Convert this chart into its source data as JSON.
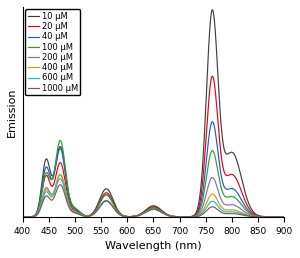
{
  "title": "",
  "xlabel": "Wavelength (nm)",
  "ylabel": "Emission",
  "xlim": [
    400,
    900
  ],
  "ylim": [
    0,
    1.05
  ],
  "series": [
    {
      "label": "10 μM",
      "color": "#404040",
      "peak1": 1.0,
      "peak2": 0.32,
      "p445": 0.28,
      "p472": 0.35,
      "p560": 0.14,
      "p650": 0.055
    },
    {
      "label": "20 μM",
      "color": "#e8000d",
      "peak1": 0.68,
      "peak2": 0.21,
      "p445": 0.2,
      "p472": 0.27,
      "p560": 0.12,
      "p650": 0.05
    },
    {
      "label": "40 μM",
      "color": "#1e5bc6",
      "peak1": 0.46,
      "peak2": 0.14,
      "p445": 0.24,
      "p472": 0.34,
      "p560": 0.11,
      "p650": 0.045
    },
    {
      "label": "100 μM",
      "color": "#2ca02c",
      "peak1": 0.32,
      "peak2": 0.1,
      "p445": 0.21,
      "p472": 0.38,
      "p560": 0.11,
      "p650": 0.045
    },
    {
      "label": "200 μM",
      "color": "#9467bd",
      "peak1": 0.19,
      "peak2": 0.06,
      "p445": 0.14,
      "p472": 0.21,
      "p560": 0.08,
      "p650": 0.038
    },
    {
      "label": "400 μM",
      "color": "#c8a400",
      "peak1": 0.11,
      "peak2": 0.035,
      "p445": 0.13,
      "p472": 0.21,
      "p560": 0.08,
      "p650": 0.038
    },
    {
      "label": "600 μM",
      "color": "#17becf",
      "peak1": 0.075,
      "peak2": 0.025,
      "p445": 0.12,
      "p472": 0.19,
      "p560": 0.08,
      "p650": 0.038
    },
    {
      "label": "1000 μM",
      "color": "#8c564b",
      "peak1": 0.048,
      "peak2": 0.016,
      "p445": 0.1,
      "p472": 0.16,
      "p560": 0.08,
      "p650": 0.038
    }
  ],
  "xticks": [
    400,
    450,
    500,
    550,
    600,
    650,
    700,
    750,
    800,
    850,
    900
  ],
  "legend_fontsize": 6.0,
  "axis_fontsize": 8,
  "tick_fontsize": 6.5
}
